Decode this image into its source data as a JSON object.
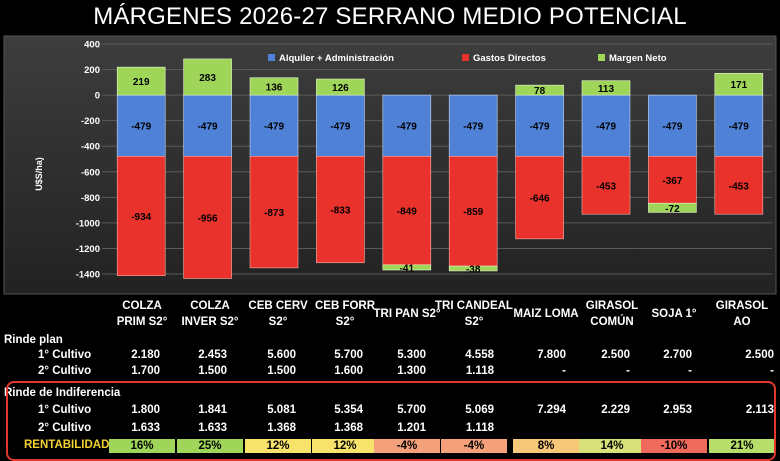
{
  "title": "MÁRGENES 2026-27 SERRANO MEDIO POTENCIAL",
  "colors": {
    "alquiler": "#4f81d6",
    "gastos": "#e8322b",
    "margen": "#9fd65a",
    "plot_bg_top": "#3b3b3b",
    "plot_bg_bottom": "#262626",
    "frame": "#e0392b"
  },
  "chart_data": {
    "type": "bar",
    "stacked": true,
    "ylabel": "U$S/ha)",
    "ylim": [
      -1400,
      400
    ],
    "yticks": [
      400,
      200,
      0,
      -200,
      -400,
      -600,
      -800,
      -1000,
      -1200,
      -1400
    ],
    "grid": true,
    "legend_position": "top",
    "categories": [
      "COLZA PRIM S2°",
      "COLZA INVER S2°",
      "CEB CERV S2°",
      "CEB FORR S2°",
      "TRI PAN S2°",
      "TRI CANDEAL S2°",
      "MAIZ LOMA",
      "GIRASOL COMÚN",
      "SOJA 1°",
      "GIRASOL AO"
    ],
    "series": [
      {
        "name": "Alquiler + Administración",
        "values": [
          -479,
          -479,
          -479,
          -479,
          -479,
          -479,
          -479,
          -479,
          -479,
          -479
        ]
      },
      {
        "name": "Gastos Directos",
        "values": [
          -934,
          -956,
          -873,
          -833,
          -849,
          -859,
          -646,
          -453,
          -367,
          -453
        ]
      },
      {
        "name": "Margen Neto",
        "values": [
          219,
          283,
          136,
          126,
          -41,
          -38,
          78,
          113,
          -72,
          171
        ]
      }
    ]
  },
  "table": {
    "columns": [
      [
        "COLZA",
        "PRIM S2°"
      ],
      [
        "COLZA",
        "INVER S2°"
      ],
      [
        "CEB CERV",
        "S2°"
      ],
      [
        "CEB FORR",
        "S2°"
      ],
      [
        "TRI PAN S2°"
      ],
      [
        "TRI CANDEAL",
        "S2°"
      ],
      [
        "MAIZ LOMA"
      ],
      [
        "GIRASOL",
        "COMÚN"
      ],
      [
        "SOJA 1°"
      ],
      [
        "GIRASOL",
        "AO"
      ]
    ],
    "rinde_plan_label": "Rinde plan",
    "rinde_plan": [
      {
        "label": "1° Cultivo",
        "values": [
          "2.180",
          "2.453",
          "5.600",
          "5.700",
          "5.300",
          "4.558",
          "7.800",
          "2.500",
          "2.700",
          "2.500"
        ]
      },
      {
        "label": "2° Cultivo",
        "values": [
          "1.700",
          "1.500",
          "1.500",
          "1.600",
          "1.300",
          "1.118",
          "-",
          "-",
          "-",
          "-"
        ]
      }
    ],
    "indiferencia_label": "Rinde de Indiferencia",
    "indiferencia": [
      {
        "label": "1° Cultivo",
        "values": [
          "1.800",
          "1.841",
          "5.081",
          "5.354",
          "5.700",
          "5.069",
          "7.294",
          "2.229",
          "2.953",
          "2.113"
        ]
      },
      {
        "label": "2° Cultivo",
        "values": [
          "1.633",
          "1.633",
          "1.368",
          "1.368",
          "1.201",
          "1.118",
          "",
          "",
          "",
          ""
        ]
      }
    ],
    "rentabilidad": {
      "label": "RENTABILIDAD",
      "values": [
        "16%",
        "25%",
        "12%",
        "12%",
        "-4%",
        "-4%",
        "8%",
        "14%",
        "-10%",
        "21%"
      ],
      "colors": [
        "#9fd65a",
        "#9fd65a",
        "#f7e26b",
        "#f7e26b",
        "#f4a07a",
        "#f4a07a",
        "#f7c878",
        "#d9e27a",
        "#ef6a5a",
        "#b7dd6a"
      ]
    }
  }
}
